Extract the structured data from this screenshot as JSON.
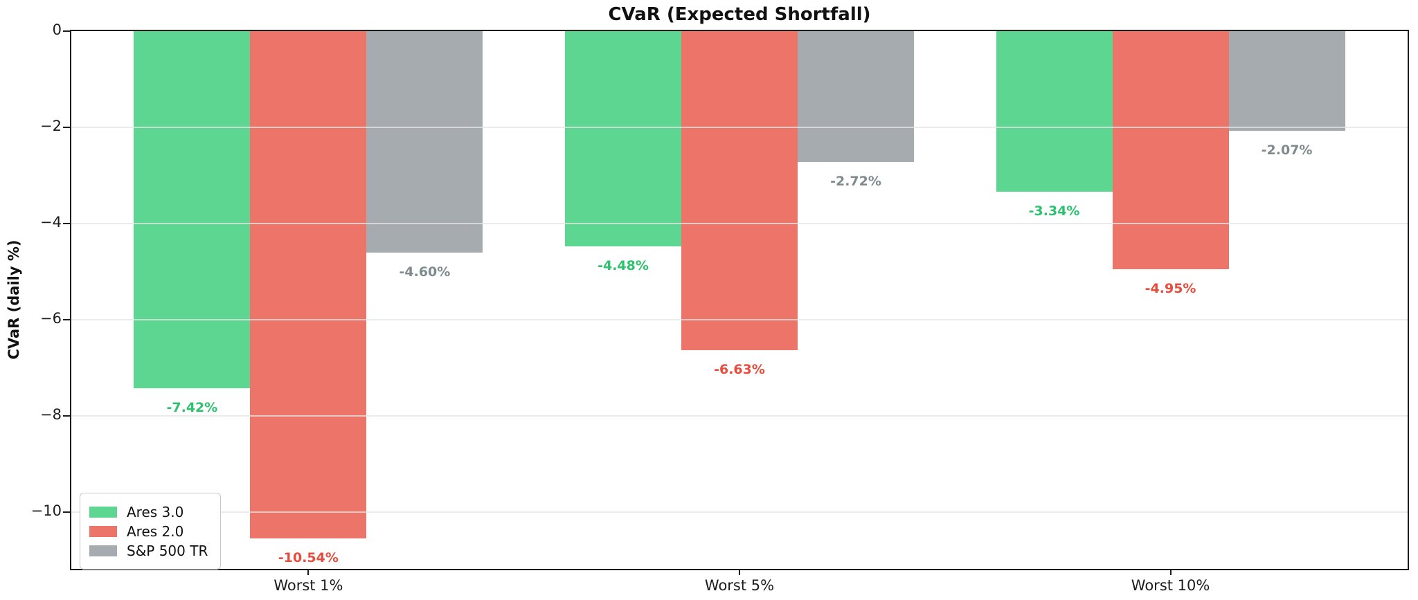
{
  "title": "CVaR (Expected Shortfall)",
  "y_axis": {
    "label": "CVaR (daily %)",
    "tick_labels": [
      "0",
      "−2",
      "−4",
      "−6",
      "−8",
      "−10"
    ],
    "tick_values": [
      0,
      -2,
      -4,
      -6,
      -8,
      -10
    ]
  },
  "x_axis": {
    "tick_labels": [
      "Worst 1%",
      "Worst 5%",
      "Worst 10%"
    ]
  },
  "legend": {
    "items": [
      {
        "label": "Ares 3.0",
        "color": "#5CD690"
      },
      {
        "label": "Ares 2.0",
        "color": "#EC7468"
      },
      {
        "label": "S&P 500 TR",
        "color": "#A5ABAE"
      }
    ]
  },
  "chart_data": {
    "type": "bar",
    "title": "CVaR (Expected Shortfall)",
    "xlabel": "",
    "ylabel": "CVaR (daily %)",
    "categories": [
      "Worst 1%",
      "Worst 5%",
      "Worst 10%"
    ],
    "series": [
      {
        "name": "Ares 3.0",
        "color": "#5CD690",
        "label_color": "#2DC26E",
        "values": [
          -7.42,
          -4.48,
          -3.34
        ],
        "labels": [
          "-7.42%",
          "-4.48%",
          "-3.34%"
        ]
      },
      {
        "name": "Ares 2.0",
        "color": "#EC7468",
        "label_color": "#E74C3C",
        "values": [
          -10.54,
          -6.63,
          -4.95
        ],
        "labels": [
          "-10.54%",
          "-6.63%",
          "-4.95%"
        ]
      },
      {
        "name": "S&P 500 TR",
        "color": "#A5ABAE",
        "label_color": "#7F8A8D",
        "values": [
          -4.6,
          -2.72,
          -2.07
        ],
        "labels": [
          "-4.60%",
          "-2.72%",
          "-2.07%"
        ]
      }
    ],
    "ylim": [
      -11.18,
      0
    ],
    "yticks": [
      0,
      -2,
      -4,
      -6,
      -8,
      -10
    ],
    "grid": true,
    "legend_position": "lower left",
    "bar_value_labels": true
  }
}
